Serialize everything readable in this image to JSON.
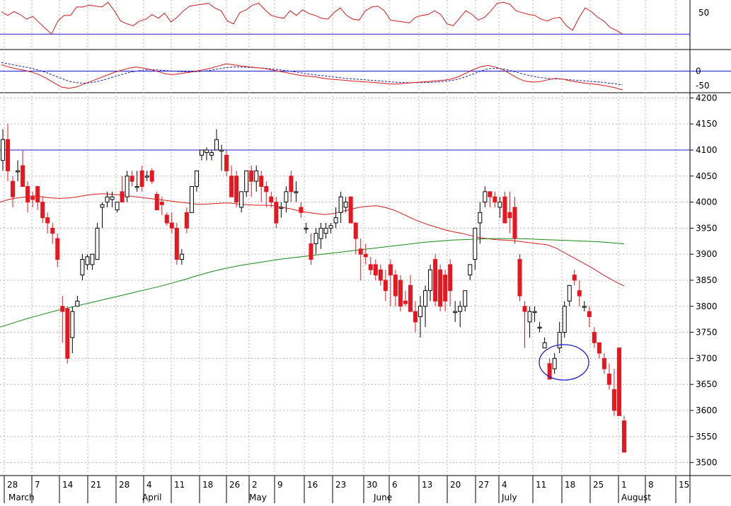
{
  "colors": {
    "background": "#ffffff",
    "up_candle": "#ffffff",
    "down_candle": "#e8161e",
    "hollow_outline": "#000000",
    "ma_short": "#d81a1a",
    "ma_long": "#168a16",
    "hline": "#1c1ccc",
    "grid": "#b4b4b4",
    "macd_signal": "#1c1ccc",
    "circle": "#1c1ccc"
  },
  "chart_data": [
    {
      "type": "line",
      "panel": "oscillator",
      "yticks": [
        "50"
      ],
      "ylim": [
        0,
        100
      ],
      "reference_lines": [
        30
      ],
      "series": [
        {
          "values": [
            78,
            70,
            78,
            72,
            62,
            68,
            55,
            42,
            30,
            58,
            70,
            70,
            88,
            88,
            92,
            90,
            88,
            98,
            80,
            58,
            52,
            48,
            58,
            62,
            72,
            64,
            75,
            56,
            66,
            80,
            90,
            92,
            94,
            96,
            86,
            80,
            58,
            52,
            76,
            82,
            92,
            96,
            82,
            70,
            66,
            64,
            80,
            70,
            82,
            74,
            70,
            64,
            62,
            76,
            86,
            70,
            62,
            60,
            80,
            88,
            90,
            80,
            60,
            58,
            56,
            54,
            66,
            70,
            72,
            80,
            72,
            52,
            48,
            64,
            80,
            72,
            60,
            66,
            80,
            96,
            98,
            94,
            80,
            76,
            72,
            70,
            62,
            58,
            64,
            66,
            48,
            38,
            64,
            86,
            78,
            66,
            58,
            44,
            38,
            30
          ]
        }
      ]
    },
    {
      "type": "line",
      "panel": "macd",
      "yticks": [
        "0",
        "-50"
      ],
      "ylim": [
        -70,
        70
      ],
      "reference_lines": [
        0
      ],
      "series": [
        {
          "values": [
            22,
            14,
            8,
            3,
            -3,
            -12,
            -25,
            -40,
            -55,
            -60,
            -55,
            -45,
            -35,
            -25,
            -15,
            -5,
            3,
            10,
            14,
            10,
            5,
            -2,
            -10,
            -12,
            -8,
            -5,
            0,
            5,
            10,
            18,
            25,
            22,
            18,
            15,
            12,
            10,
            5,
            0,
            -5,
            -10,
            -15,
            -18,
            -20,
            -25,
            -28,
            -30,
            -32,
            -35,
            -36,
            -38,
            -40,
            -42,
            -45,
            -45,
            -42,
            -40,
            -38,
            -36,
            -34,
            -32,
            -28,
            -20,
            -8,
            5,
            15,
            20,
            14,
            5,
            -10,
            -25,
            -35,
            -38,
            -36,
            -30,
            -25,
            -28,
            -34,
            -38,
            -42,
            -45,
            -48,
            -52,
            -58,
            -65
          ]
        },
        {
          "values": [
            30,
            25,
            20,
            15,
            10,
            3,
            -5,
            -15,
            -25,
            -35,
            -40,
            -42,
            -40,
            -35,
            -28,
            -20,
            -12,
            -5,
            0,
            4,
            5,
            4,
            2,
            0,
            -2,
            -3,
            -2,
            0,
            3,
            8,
            12,
            14,
            14,
            13,
            12,
            10,
            8,
            5,
            2,
            -2,
            -6,
            -10,
            -13,
            -16,
            -19,
            -22,
            -25,
            -27,
            -29,
            -31,
            -33,
            -35,
            -37,
            -39,
            -40,
            -40,
            -40,
            -39,
            -38,
            -36,
            -33,
            -28,
            -20,
            -10,
            0,
            8,
            10,
            8,
            2,
            -5,
            -12,
            -18,
            -22,
            -25,
            -27,
            -28,
            -30,
            -32,
            -34,
            -36,
            -38,
            -41,
            -44,
            -48
          ]
        }
      ]
    },
    {
      "type": "candlestick",
      "panel": "price",
      "yticks": [
        "4200",
        "4150",
        "4100",
        "4050",
        "4000",
        "3950",
        "3900",
        "3850",
        "3800",
        "3750",
        "3700",
        "3650",
        "3600",
        "3550",
        "3500"
      ],
      "ylim": [
        3475,
        4210
      ],
      "reference_lines": [
        4100
      ],
      "xtick_labels": [
        "28",
        "7",
        "14",
        "21",
        "28",
        "4",
        "11",
        "18",
        "26",
        "2",
        "9",
        "16",
        "23",
        "30",
        "6",
        "13",
        "20",
        "27",
        "4",
        "11",
        "18",
        "25",
        "1",
        "8",
        "15"
      ],
      "month_labels": [
        "March",
        "April",
        "May",
        "June",
        "July",
        "August"
      ],
      "ohlc": [
        [
          4080,
          4140,
          4060,
          4120
        ],
        [
          4120,
          4150,
          4040,
          4060
        ],
        [
          4040,
          4050,
          3990,
          4010
        ],
        [
          4060,
          4080,
          4040,
          4060
        ],
        [
          4070,
          4100,
          4030,
          4030
        ],
        [
          4030,
          4040,
          3980,
          4000
        ],
        [
          4010,
          4020,
          3990,
          4005
        ],
        [
          4030,
          4030,
          3985,
          4000
        ],
        [
          4000,
          4010,
          3960,
          3970
        ],
        [
          3970,
          3980,
          3940,
          3960
        ],
        [
          3950,
          3960,
          3920,
          3940
        ],
        [
          3930,
          3940,
          3875,
          3890
        ],
        [
          3800,
          3820,
          3730,
          3790
        ],
        [
          3795,
          3800,
          3690,
          3700
        ],
        [
          3740,
          3800,
          3710,
          3790
        ],
        [
          3800,
          3820,
          3800,
          3810
        ],
        [
          3860,
          3900,
          3850,
          3890
        ],
        [
          3880,
          3900,
          3870,
          3895
        ],
        [
          3880,
          3900,
          3870,
          3900
        ],
        [
          3890,
          3960,
          3890,
          3950
        ],
        [
          3990,
          4000,
          3950,
          3995
        ],
        [
          4000,
          4020,
          3990,
          4010
        ],
        [
          4005,
          4020,
          3990,
          4010
        ],
        [
          3985,
          4000,
          3980,
          4000
        ],
        [
          4020,
          4050,
          4000,
          4000
        ],
        [
          4010,
          4060,
          4000,
          4050
        ],
        [
          4050,
          4060,
          4030,
          4040
        ],
        [
          4030,
          4060,
          4020,
          4030
        ],
        [
          4060,
          4070,
          4020,
          4030
        ],
        [
          4050,
          4060,
          4040,
          4050
        ],
        [
          4060,
          4065,
          4035,
          4040
        ],
        [
          4015,
          4020,
          3985,
          3985
        ],
        [
          4000,
          4010,
          3975,
          3995
        ],
        [
          3975,
          3980,
          3955,
          3960
        ],
        [
          3960,
          3980,
          3940,
          3950
        ],
        [
          3950,
          3960,
          3880,
          3890
        ],
        [
          3890,
          3910,
          3880,
          3900
        ],
        [
          3980,
          3990,
          3940,
          3950
        ],
        [
          3980,
          4030,
          3980,
          4030
        ],
        [
          4030,
          4060,
          4020,
          4060
        ],
        [
          4090,
          4100,
          4080,
          4100
        ],
        [
          4095,
          4105,
          4080,
          4100
        ],
        [
          4090,
          4100,
          4080,
          4095
        ],
        [
          4100,
          4140,
          4100,
          4120
        ],
        [
          4100,
          4110,
          4060,
          4100
        ],
        [
          4090,
          4100,
          4050,
          4060
        ],
        [
          4050,
          4070,
          4010,
          4010
        ],
        [
          4050,
          4060,
          3990,
          4000
        ],
        [
          3990,
          4020,
          3980,
          4020
        ],
        [
          4020,
          4060,
          4010,
          4060
        ],
        [
          4060,
          4070,
          4010,
          4040
        ],
        [
          4040,
          4070,
          4020,
          4060
        ],
        [
          4050,
          4060,
          4000,
          4030
        ],
        [
          4030,
          4040,
          3990,
          4020
        ],
        [
          4010,
          4020,
          3990,
          4000
        ],
        [
          4000,
          4010,
          3950,
          3960
        ],
        [
          3990,
          4000,
          3970,
          3990
        ],
        [
          4000,
          4030,
          3980,
          4020
        ],
        [
          4050,
          4060,
          4000,
          4020
        ],
        [
          4020,
          4040,
          4000,
          4020
        ],
        [
          3990,
          4000,
          3970,
          3980
        ],
        [
          3950,
          3960,
          3940,
          3950
        ],
        [
          3920,
          3940,
          3880,
          3890
        ],
        [
          3920,
          3950,
          3900,
          3940
        ],
        [
          3930,
          3960,
          3910,
          3950
        ],
        [
          3940,
          3960,
          3930,
          3950
        ],
        [
          3950,
          3960,
          3940,
          3955
        ],
        [
          3960,
          3990,
          3950,
          3970
        ],
        [
          3980,
          4020,
          3960,
          4010
        ],
        [
          3990,
          4010,
          3980,
          4000
        ],
        [
          4010,
          4010,
          3960,
          3960
        ],
        [
          3960,
          3960,
          3900,
          3930
        ],
        [
          3910,
          3930,
          3850,
          3900
        ],
        [
          3900,
          3920,
          3880,
          3895
        ],
        [
          3880,
          3895,
          3860,
          3870
        ],
        [
          3880,
          3890,
          3850,
          3860
        ],
        [
          3870,
          3880,
          3840,
          3850
        ],
        [
          3850,
          3870,
          3810,
          3830
        ],
        [
          3880,
          3890,
          3800,
          3860
        ],
        [
          3860,
          3870,
          3800,
          3820
        ],
        [
          3850,
          3860,
          3790,
          3800
        ],
        [
          3810,
          3830,
          3800,
          3805
        ],
        [
          3840,
          3860,
          3790,
          3790
        ],
        [
          3790,
          3810,
          3750,
          3770
        ],
        [
          3780,
          3820,
          3740,
          3800
        ],
        [
          3800,
          3840,
          3760,
          3830
        ],
        [
          3830,
          3880,
          3810,
          3870
        ],
        [
          3890,
          3900,
          3800,
          3810
        ],
        [
          3870,
          3880,
          3790,
          3800
        ],
        [
          3860,
          3870,
          3790,
          3810
        ],
        [
          3880,
          3890,
          3800,
          3830
        ],
        [
          3790,
          3810,
          3770,
          3790
        ],
        [
          3790,
          3810,
          3760,
          3800
        ],
        [
          3800,
          3830,
          3790,
          3830
        ],
        [
          3860,
          3880,
          3850,
          3880
        ],
        [
          3890,
          3950,
          3870,
          3950
        ],
        [
          3960,
          4000,
          3920,
          3980
        ],
        [
          4000,
          4030,
          3990,
          4020
        ],
        [
          4020,
          4020,
          3990,
          4010
        ],
        [
          4010,
          4020,
          3990,
          4000
        ],
        [
          3990,
          4010,
          3970,
          4000
        ],
        [
          4010,
          4020,
          3960,
          3960
        ],
        [
          3980,
          4020,
          3940,
          3970
        ],
        [
          3990,
          4010,
          3920,
          3930
        ],
        [
          3890,
          3900,
          3810,
          3820
        ],
        [
          3800,
          3810,
          3720,
          3790
        ],
        [
          3770,
          3800,
          3740,
          3790
        ],
        [
          3790,
          3800,
          3770,
          3790
        ],
        [
          3760,
          3770,
          3750,
          3760
        ],
        [
          3720,
          3740,
          3720,
          3730
        ],
        [
          3690,
          3700,
          3660,
          3660
        ],
        [
          3680,
          3710,
          3670,
          3700
        ],
        [
          3720,
          3770,
          3710,
          3750
        ],
        [
          3750,
          3810,
          3740,
          3800
        ],
        [
          3810,
          3840,
          3800,
          3840
        ],
        [
          3860,
          3870,
          3840,
          3850
        ],
        [
          3830,
          3850,
          3800,
          3820
        ],
        [
          3800,
          3810,
          3790,
          3800
        ],
        [
          3790,
          3800,
          3760,
          3780
        ],
        [
          3750,
          3760,
          3720,
          3730
        ],
        [
          3730,
          3730,
          3700,
          3710
        ],
        [
          3700,
          3710,
          3670,
          3680
        ],
        [
          3670,
          3690,
          3640,
          3650
        ],
        [
          3640,
          3680,
          3590,
          3600
        ],
        [
          3720,
          3720,
          3590,
          3590
        ],
        [
          3580,
          3590,
          3520,
          3520
        ]
      ],
      "series": [
        {
          "values": [
            4000,
            4005,
            4008,
            4010,
            4012,
            4010,
            4008,
            4007,
            4008,
            4010,
            4013,
            4015,
            4016,
            4015,
            4014,
            4012,
            4010,
            4008,
            4006,
            4004,
            4002,
            4000,
            3998,
            3996,
            3996,
            3997,
            3998,
            3998,
            3996,
            3995,
            3994,
            3994,
            3993,
            3990,
            3987,
            3983,
            3980,
            3978,
            3976,
            3978,
            3982,
            3986,
            3990,
            3992,
            3993,
            3990,
            3985,
            3978,
            3970,
            3963,
            3957,
            3952,
            3947,
            3943,
            3940,
            3936,
            3932,
            3930,
            3928,
            3927,
            3926,
            3924,
            3922,
            3920,
            3918,
            3912,
            3903,
            3894,
            3885,
            3876,
            3866,
            3856,
            3847,
            3839
          ]
        },
        {
          "values": [
            3760,
            3768,
            3776,
            3783,
            3790,
            3796,
            3802,
            3808,
            3814,
            3820,
            3826,
            3832,
            3838,
            3845,
            3852,
            3860,
            3867,
            3873,
            3878,
            3882,
            3886,
            3890,
            3893,
            3896,
            3899,
            3902,
            3905,
            3908,
            3911,
            3914,
            3917,
            3920,
            3923,
            3925,
            3927,
            3928,
            3929,
            3930,
            3930,
            3930,
            3929,
            3928,
            3927,
            3926,
            3925,
            3924,
            3922,
            3920
          ]
        }
      ]
    }
  ]
}
